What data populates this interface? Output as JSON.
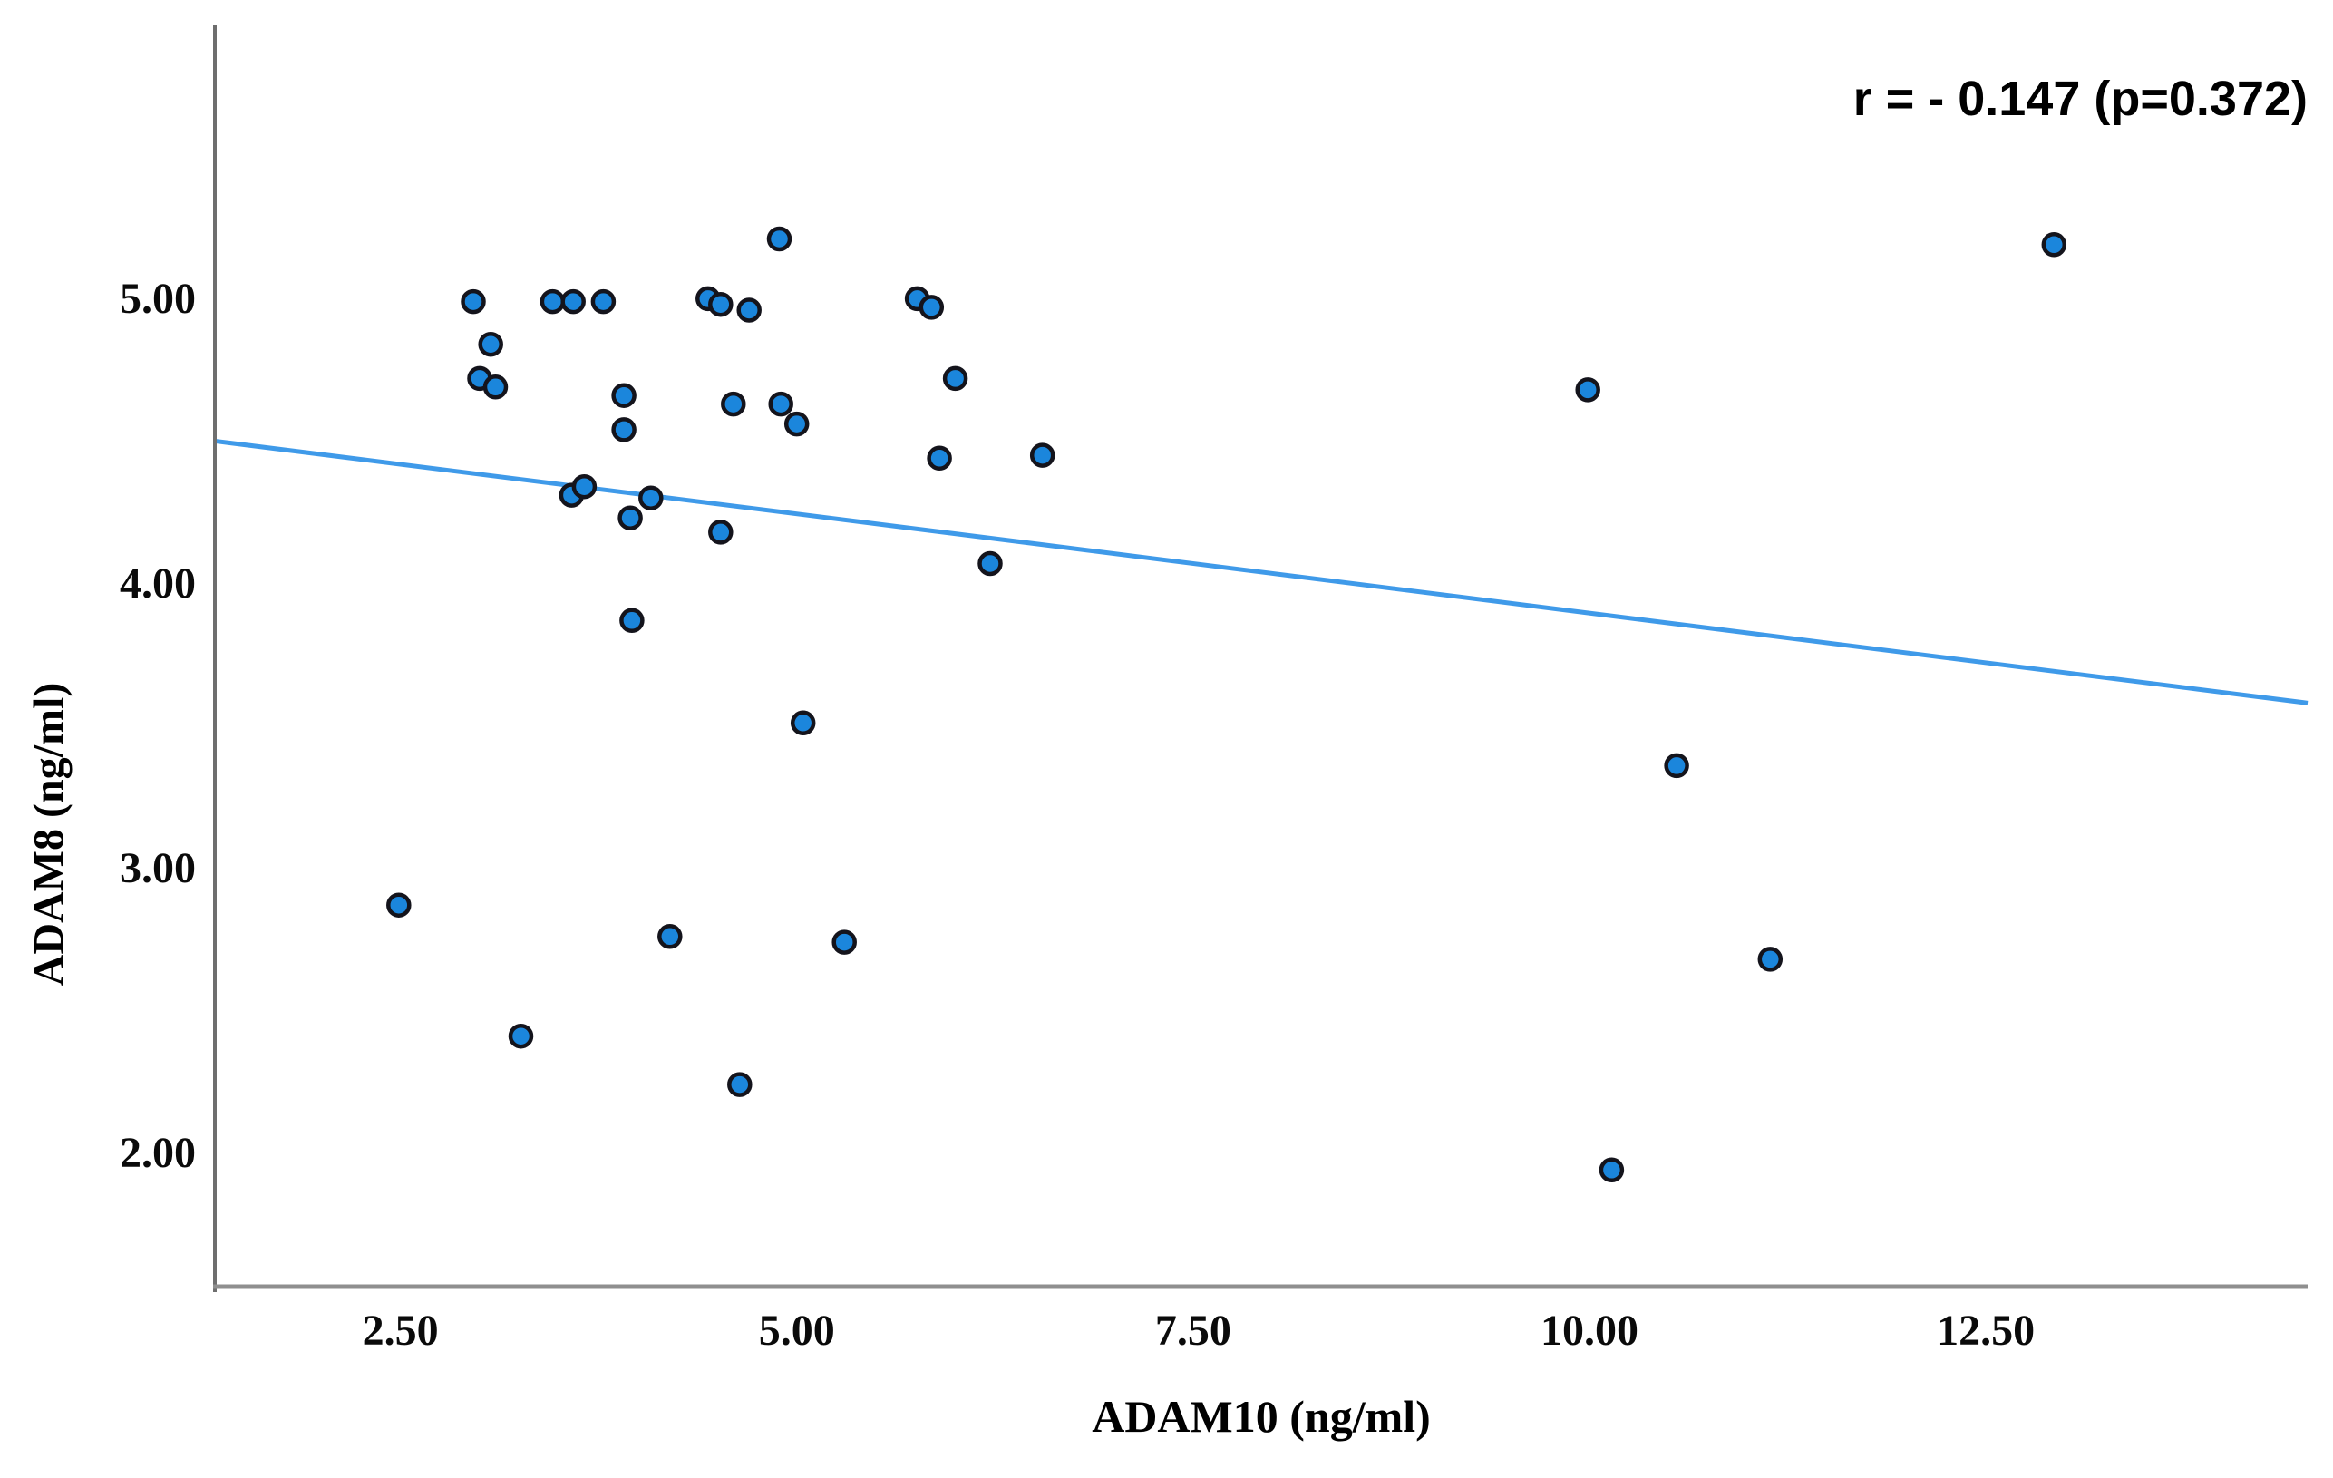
{
  "chart_data": {
    "type": "scatter",
    "title": "",
    "xlabel": "ADAM10 (ng/ml)",
    "ylabel": "ADAM8 (ng/ml)",
    "annotation": "r = - 0.147 (p=0.372)",
    "grid": false,
    "legend": false,
    "xlim": [
      1.33,
      14.69
    ],
    "ylim": [
      1.54,
      5.97
    ],
    "x_ticks": [
      {
        "value": 2.5,
        "label": "2.50"
      },
      {
        "value": 5.0,
        "label": "5.00"
      },
      {
        "value": 7.5,
        "label": "7.50"
      },
      {
        "value": 10.0,
        "label": "10.00"
      },
      {
        "value": 12.5,
        "label": "12.50"
      }
    ],
    "y_ticks": [
      {
        "value": 2.0,
        "label": "2.00"
      },
      {
        "value": 3.0,
        "label": "3.00"
      },
      {
        "value": 4.0,
        "label": "4.00"
      },
      {
        "value": 5.0,
        "label": "5.00"
      }
    ],
    "points": [
      [
        2.96,
        5.0
      ],
      [
        3.46,
        5.0
      ],
      [
        3.59,
        5.0
      ],
      [
        3.78,
        5.0
      ],
      [
        4.44,
        5.01
      ],
      [
        4.52,
        4.99
      ],
      [
        4.7,
        4.97
      ],
      [
        5.76,
        5.01
      ],
      [
        5.85,
        4.98
      ],
      [
        4.89,
        5.22
      ],
      [
        3.07,
        4.85
      ],
      [
        3.0,
        4.73
      ],
      [
        3.1,
        4.7
      ],
      [
        3.91,
        4.67
      ],
      [
        3.91,
        4.55
      ],
      [
        4.6,
        4.64
      ],
      [
        4.9,
        4.64
      ],
      [
        5.0,
        4.57
      ],
      [
        6.0,
        4.73
      ],
      [
        5.9,
        4.45
      ],
      [
        6.55,
        4.46
      ],
      [
        3.58,
        4.32
      ],
      [
        3.66,
        4.35
      ],
      [
        4.08,
        4.31
      ],
      [
        3.95,
        4.24
      ],
      [
        4.52,
        4.19
      ],
      [
        6.22,
        4.08
      ],
      [
        3.96,
        3.88
      ],
      [
        5.04,
        3.52
      ],
      [
        2.49,
        2.88
      ],
      [
        4.2,
        2.77
      ],
      [
        5.3,
        2.75
      ],
      [
        3.26,
        2.42
      ],
      [
        4.64,
        2.25
      ],
      [
        9.99,
        4.69
      ],
      [
        10.55,
        3.37
      ],
      [
        11.14,
        2.69
      ],
      [
        10.14,
        1.95
      ],
      [
        12.93,
        5.2
      ]
    ],
    "trend_line": {
      "x_start": 1.33,
      "y_start": 4.51,
      "x_end": 14.53,
      "y_end": 3.59
    },
    "colors": {
      "point_fill": "#1b86dc",
      "point_stroke": "#14141c",
      "trend_line": "#3f9ae9",
      "y_axis_line": "#6e6e6e",
      "x_axis_line": "#8f8f8f",
      "text": "#000000"
    }
  }
}
